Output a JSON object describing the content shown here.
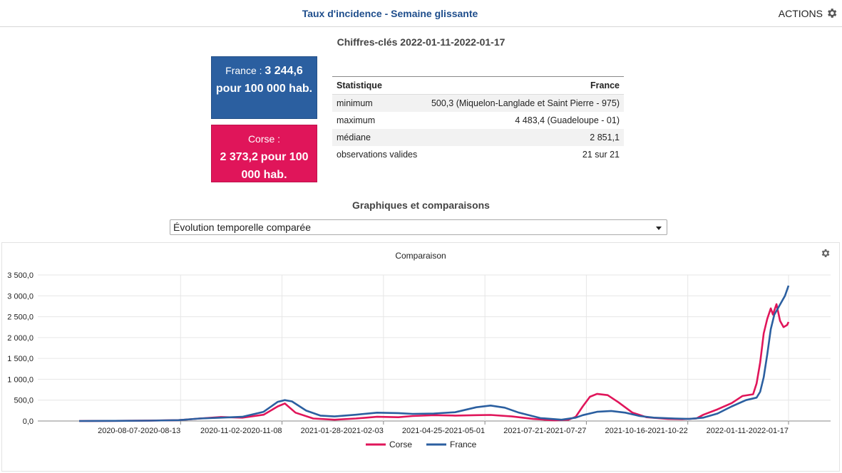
{
  "header": {
    "title": "Taux d'incidence - Semaine glissante",
    "actions_label": "ACTIONS"
  },
  "key_figures": {
    "title": "Chiffres-clés 2022-01-11-2022-01-17",
    "france": {
      "name": "France :",
      "value": "3 244,6",
      "unit": "pour 100 000 hab."
    },
    "corse": {
      "name": "Corse :",
      "value": "2 373,2",
      "unit": "pour 100 000 hab."
    },
    "table": {
      "headers": [
        "Statistique",
        "France"
      ],
      "rows": [
        [
          "minimum",
          "500,3 (Miquelon-Langlade et Saint Pierre - 975)"
        ],
        [
          "maximum",
          "4 483,4 (Guadeloupe - 01)"
        ],
        [
          "médiane",
          "2 851,1"
        ],
        [
          "observations valides",
          "21 sur 21"
        ]
      ]
    }
  },
  "comparisons": {
    "title": "Graphiques et comparaisons",
    "selected_option": "Évolution temporelle comparée"
  },
  "chart_data": {
    "type": "line",
    "title": "Comparaison",
    "ylim": [
      0,
      3500
    ],
    "y_ticks": [
      0,
      500,
      1000,
      1500,
      2000,
      2500,
      3000,
      3500
    ],
    "y_tick_labels": [
      "0,0",
      "500,0",
      "1 000,0",
      "1 500,0",
      "2 000,0",
      "2 500,0",
      "3 000,0",
      "3 500,0"
    ],
    "x_tick_labels": [
      "2020-08-07-2020-08-13",
      "2020-11-02-2020-11-08",
      "2021-01-28-2021-02-03",
      "2021-04-25-2021-05-01",
      "2021-07-21-2021-07-27",
      "2021-10-16-2021-10-22",
      "2022-01-11-2022-01-17"
    ],
    "x_ticks": [
      0.143,
      0.286,
      0.429,
      0.572,
      0.715,
      0.858,
      1.0
    ],
    "grid": true,
    "legend_position": "bottom",
    "series": [
      {
        "name": "Corse",
        "color": "#e0155a",
        "points": [
          [
            0.0,
            0
          ],
          [
            0.05,
            3
          ],
          [
            0.1,
            10
          ],
          [
            0.14,
            20
          ],
          [
            0.17,
            60
          ],
          [
            0.2,
            95
          ],
          [
            0.23,
            80
          ],
          [
            0.26,
            150
          ],
          [
            0.28,
            350
          ],
          [
            0.29,
            420
          ],
          [
            0.305,
            200
          ],
          [
            0.33,
            60
          ],
          [
            0.36,
            30
          ],
          [
            0.39,
            60
          ],
          [
            0.42,
            100
          ],
          [
            0.45,
            90
          ],
          [
            0.47,
            120
          ],
          [
            0.5,
            140
          ],
          [
            0.53,
            130
          ],
          [
            0.56,
            140
          ],
          [
            0.58,
            145
          ],
          [
            0.61,
            110
          ],
          [
            0.64,
            50
          ],
          [
            0.67,
            15
          ],
          [
            0.69,
            30
          ],
          [
            0.7,
            100
          ],
          [
            0.71,
            350
          ],
          [
            0.72,
            580
          ],
          [
            0.73,
            650
          ],
          [
            0.745,
            620
          ],
          [
            0.76,
            450
          ],
          [
            0.78,
            200
          ],
          [
            0.8,
            90
          ],
          [
            0.83,
            50
          ],
          [
            0.85,
            45
          ],
          [
            0.87,
            60
          ],
          [
            0.88,
            150
          ],
          [
            0.9,
            280
          ],
          [
            0.92,
            430
          ],
          [
            0.935,
            600
          ],
          [
            0.95,
            640
          ],
          [
            0.955,
            900
          ],
          [
            0.96,
            1400
          ],
          [
            0.965,
            2100
          ],
          [
            0.97,
            2450
          ],
          [
            0.975,
            2700
          ],
          [
            0.978,
            2550
          ],
          [
            0.983,
            2800
          ],
          [
            0.988,
            2400
          ],
          [
            0.993,
            2250
          ],
          [
            0.998,
            2300
          ],
          [
            1.0,
            2373.2
          ]
        ]
      },
      {
        "name": "France",
        "color": "#2b5fa0",
        "points": [
          [
            0.0,
            0
          ],
          [
            0.05,
            3
          ],
          [
            0.1,
            8
          ],
          [
            0.14,
            20
          ],
          [
            0.17,
            60
          ],
          [
            0.2,
            80
          ],
          [
            0.23,
            100
          ],
          [
            0.26,
            220
          ],
          [
            0.28,
            460
          ],
          [
            0.29,
            500
          ],
          [
            0.3,
            470
          ],
          [
            0.32,
            250
          ],
          [
            0.34,
            130
          ],
          [
            0.36,
            110
          ],
          [
            0.39,
            150
          ],
          [
            0.42,
            200
          ],
          [
            0.45,
            190
          ],
          [
            0.47,
            170
          ],
          [
            0.5,
            180
          ],
          [
            0.53,
            210
          ],
          [
            0.56,
            330
          ],
          [
            0.58,
            370
          ],
          [
            0.6,
            320
          ],
          [
            0.62,
            200
          ],
          [
            0.65,
            70
          ],
          [
            0.68,
            30
          ],
          [
            0.7,
            80
          ],
          [
            0.71,
            140
          ],
          [
            0.73,
            220
          ],
          [
            0.75,
            240
          ],
          [
            0.77,
            200
          ],
          [
            0.79,
            120
          ],
          [
            0.81,
            80
          ],
          [
            0.84,
            60
          ],
          [
            0.86,
            50
          ],
          [
            0.88,
            80
          ],
          [
            0.9,
            180
          ],
          [
            0.92,
            350
          ],
          [
            0.94,
            500
          ],
          [
            0.955,
            560
          ],
          [
            0.96,
            700
          ],
          [
            0.965,
            1050
          ],
          [
            0.97,
            1600
          ],
          [
            0.975,
            2200
          ],
          [
            0.98,
            2550
          ],
          [
            0.985,
            2700
          ],
          [
            0.99,
            2850
          ],
          [
            0.995,
            3000
          ],
          [
            1.0,
            3244.6
          ]
        ]
      }
    ]
  }
}
